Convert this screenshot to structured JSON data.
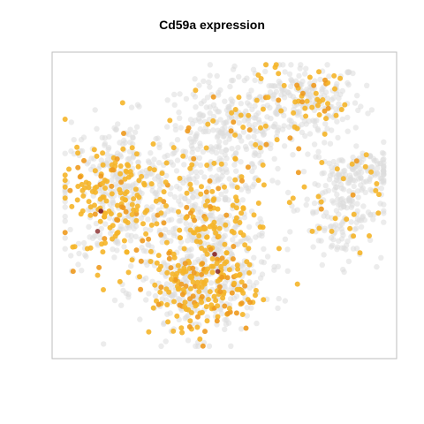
{
  "chart_data": {
    "type": "scatter",
    "title": "Cd59a expression",
    "xlabel": "",
    "ylabel": "",
    "grid": false,
    "axes_visible": false,
    "colors": {
      "background_cells": "#dcdcdc",
      "expressing_low": "#f5b529",
      "expressing_mid": "#ee9a1f",
      "expressing_high": "#8b2d2d",
      "frame": "#bdbdbd"
    },
    "clusters": [
      {
        "id": "upper-right",
        "x": 0.74,
        "y": 0.86,
        "sx": 0.095,
        "sy": 0.07,
        "n_bg": 220,
        "n_expr": 55
      },
      {
        "id": "top-middle",
        "x": 0.5,
        "y": 0.74,
        "sx": 0.1,
        "sy": 0.1,
        "n_bg": 260,
        "n_expr": 35
      },
      {
        "id": "left",
        "x": 0.18,
        "y": 0.54,
        "sx": 0.09,
        "sy": 0.13,
        "n_bg": 330,
        "n_expr": 170
      },
      {
        "id": "center",
        "x": 0.46,
        "y": 0.4,
        "sx": 0.09,
        "sy": 0.12,
        "n_bg": 300,
        "n_expr": 130
      },
      {
        "id": "bottom",
        "x": 0.42,
        "y": 0.2,
        "sx": 0.09,
        "sy": 0.08,
        "n_bg": 220,
        "n_expr": 150
      },
      {
        "id": "right",
        "x": 0.86,
        "y": 0.5,
        "sx": 0.065,
        "sy": 0.1,
        "n_bg": 190,
        "n_expr": 25
      },
      {
        "id": "far-right-arm",
        "x": 0.92,
        "y": 0.62,
        "sx": 0.05,
        "sy": 0.03,
        "n_bg": 80,
        "n_expr": 4
      }
    ],
    "high_expression_points": [
      {
        "x": 0.12,
        "y": 0.48,
        "level": 1.0
      },
      {
        "x": 0.47,
        "y": 0.33,
        "level": 0.9
      },
      {
        "x": 0.48,
        "y": 0.27,
        "level": 0.8
      },
      {
        "x": 0.11,
        "y": 0.41,
        "level": 0.7
      }
    ],
    "xlim": [
      0,
      1
    ],
    "ylim": [
      0,
      1
    ]
  }
}
